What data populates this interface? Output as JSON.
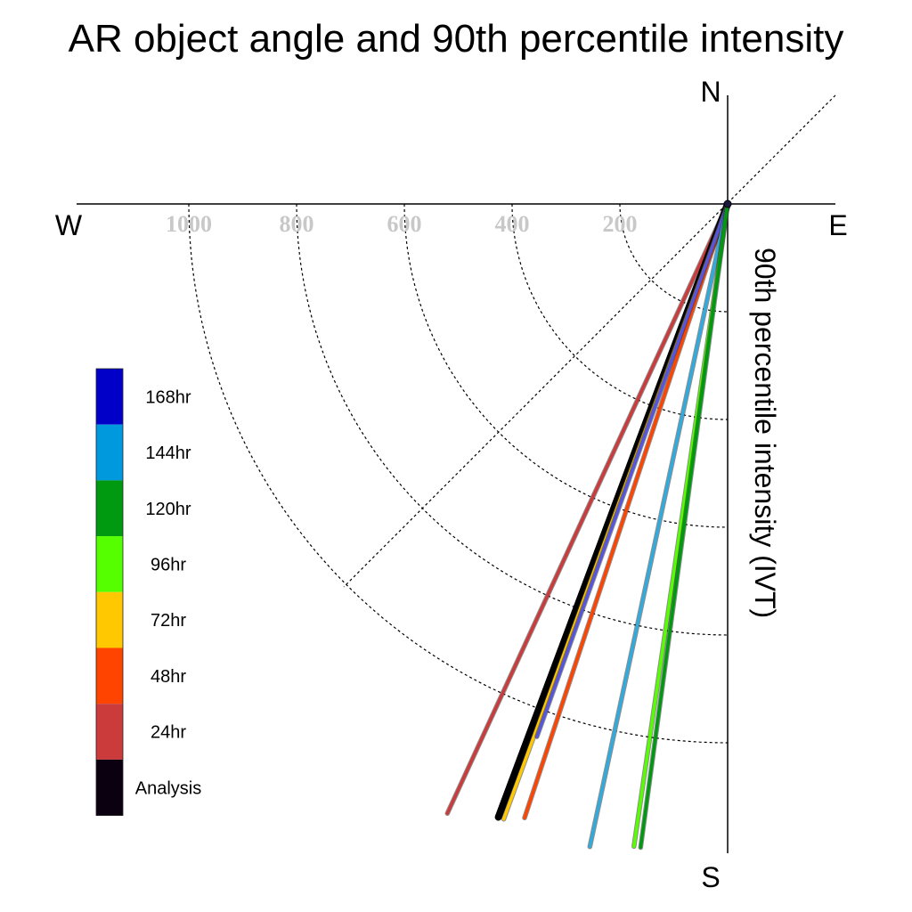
{
  "chart_data": {
    "type": "polar-line",
    "title": "AR object angle and 90th percentile intensity",
    "ylabel": "90th percentile intensity (IVT)",
    "compass": {
      "north": "N",
      "south": "S",
      "east": "E",
      "west": "W"
    },
    "radial_ticks": [
      200,
      400,
      600,
      800,
      1000
    ],
    "radial_tick_labels": [
      "200",
      "400",
      "600",
      "800",
      "1000"
    ],
    "radial_range": [
      0,
      1200
    ],
    "angle_unit": "degrees clockwise from North",
    "grid": "dashed arcs (southwest quadrant) and dashed NE-SW diagonal",
    "legend": {
      "placement": "left",
      "entries": [
        {
          "label": "168hr",
          "color": "#0000c8"
        },
        {
          "label": "144hr",
          "color": "#0099dd"
        },
        {
          "label": "120hr",
          "color": "#009a11"
        },
        {
          "label": "96hr",
          "color": "#55ff00"
        },
        {
          "label": "72hr",
          "color": "#ffc800"
        },
        {
          "label": "48hr",
          "color": "#ff4400"
        },
        {
          "label": "24hr",
          "color": "#cc3b3b"
        },
        {
          "label": "Analysis",
          "color": "#0a0010"
        }
      ]
    },
    "series": [
      {
        "name": "24hr",
        "color": "#cc3b3b",
        "angle": 204.7,
        "intensity": 1245
      },
      {
        "name": "Analysis",
        "color": "#000000",
        "angle": 200.5,
        "intensity": 1215
      },
      {
        "name": "72hr",
        "color": "#ffc800",
        "angle": 200.0,
        "intensity": 1215
      },
      {
        "name": "48hr",
        "color": "#ff4400",
        "angle": 198.3,
        "intensity": 1200
      },
      {
        "name": "168hr",
        "color": "#5555dd",
        "angle": 199.7,
        "intensity": 1050
      },
      {
        "name": "144hr",
        "color": "#33aadd",
        "angle": 192.1,
        "intensity": 1220
      },
      {
        "name": "96hr",
        "color": "#55ff00",
        "angle": 188.3,
        "intensity": 1205
      },
      {
        "name": "120hr",
        "color": "#009a11",
        "angle": 187.7,
        "intensity": 1205
      }
    ]
  }
}
